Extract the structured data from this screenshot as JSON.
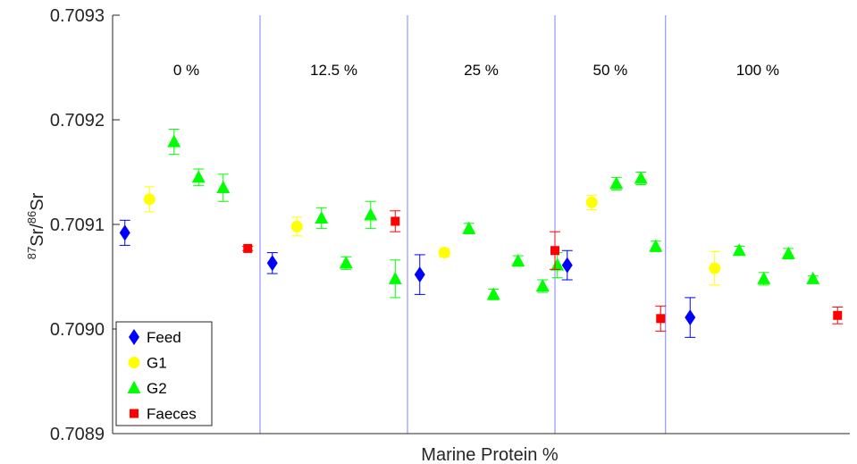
{
  "chart_data": {
    "type": "scatter",
    "title": "",
    "xlabel": "Marine Protein %",
    "ylabel": {
      "base1": "Sr",
      "sup1": "87",
      "slash": "/",
      "sup2": "86",
      "base2": "Sr"
    },
    "ylim": [
      0.7089,
      0.7093
    ],
    "yticks": [
      "0.7089",
      "0.7090",
      "0.7091",
      "0.7092",
      "0.7093"
    ],
    "xlim": [
      0.5,
      30.5
    ],
    "groups": [
      {
        "label": "0 %",
        "start": 0.5,
        "end": 6.5
      },
      {
        "label": "12.5 %",
        "start": 6.5,
        "end": 12.5
      },
      {
        "label": "25 %",
        "start": 12.5,
        "end": 18.5
      },
      {
        "label": "50 %",
        "start": 18.5,
        "end": 23.0
      },
      {
        "label": "100 %",
        "start": 23.0,
        "end": 30.5
      }
    ],
    "legend_position": "bottom-left",
    "series": [
      {
        "name": "Feed",
        "marker": "diamond",
        "color": "#0000ff",
        "points": [
          {
            "x": 1,
            "y": 0.709092,
            "err": 1.2e-05
          },
          {
            "x": 7,
            "y": 0.709063,
            "err": 1e-05
          },
          {
            "x": 13,
            "y": 0.709052,
            "err": 1.9e-05
          },
          {
            "x": 19,
            "y": 0.709061,
            "err": 1.4e-05
          },
          {
            "x": 24,
            "y": 0.709011,
            "err": 1.9e-05
          }
        ]
      },
      {
        "name": "G1",
        "marker": "circle",
        "color": "#ffff00",
        "points": [
          {
            "x": 2,
            "y": 0.709124,
            "err": 1.2e-05
          },
          {
            "x": 8,
            "y": 0.709098,
            "err": 9e-06
          },
          {
            "x": 14,
            "y": 0.709073,
            "err": 4e-06
          },
          {
            "x": 20,
            "y": 0.709121,
            "err": 7e-06
          },
          {
            "x": 25,
            "y": 0.709058,
            "err": 1.6e-05
          }
        ]
      },
      {
        "name": "G2",
        "marker": "triangle",
        "color": "#00ff00",
        "points": [
          {
            "x": 3,
            "y": 0.709179,
            "err": 1.2e-05
          },
          {
            "x": 4,
            "y": 0.709145,
            "err": 8e-06
          },
          {
            "x": 5,
            "y": 0.709135,
            "err": 1.3e-05
          },
          {
            "x": 9,
            "y": 0.709106,
            "err": 1e-05
          },
          {
            "x": 10,
            "y": 0.709063,
            "err": 6e-06
          },
          {
            "x": 11,
            "y": 0.709109,
            "err": 1.3e-05
          },
          {
            "x": 12,
            "y": 0.709048,
            "err": 1.8e-05
          },
          {
            "x": 15,
            "y": 0.709096,
            "err": 5e-06
          },
          {
            "x": 16,
            "y": 0.709033,
            "err": 5e-06
          },
          {
            "x": 17,
            "y": 0.709065,
            "err": 5e-06
          },
          {
            "x": 18,
            "y": 0.709041,
            "err": 6e-06
          },
          {
            "x": 18.6,
            "y": 0.709061,
            "err": 1.2e-05
          },
          {
            "x": 21,
            "y": 0.709139,
            "err": 6e-06
          },
          {
            "x": 22,
            "y": 0.709144,
            "err": 6e-06
          },
          {
            "x": 22.6,
            "y": 0.709079,
            "err": 5e-06
          },
          {
            "x": 26,
            "y": 0.709075,
            "err": 4e-06
          },
          {
            "x": 27,
            "y": 0.709048,
            "err": 6e-06
          },
          {
            "x": 28,
            "y": 0.709072,
            "err": 5e-06
          },
          {
            "x": 29,
            "y": 0.709048,
            "err": 3e-06
          }
        ]
      },
      {
        "name": "Faeces",
        "marker": "square",
        "color": "#ff0000",
        "points": [
          {
            "x": 6,
            "y": 0.709077,
            "err": 2e-06
          },
          {
            "x": 12,
            "y": 0.709103,
            "err": 1e-05
          },
          {
            "x": 18.5,
            "y": 0.709075,
            "err": 1.8e-05
          },
          {
            "x": 22.8,
            "y": 0.70901,
            "err": 1.2e-05
          },
          {
            "x": 30,
            "y": 0.709013,
            "err": 8e-06
          }
        ]
      }
    ]
  }
}
